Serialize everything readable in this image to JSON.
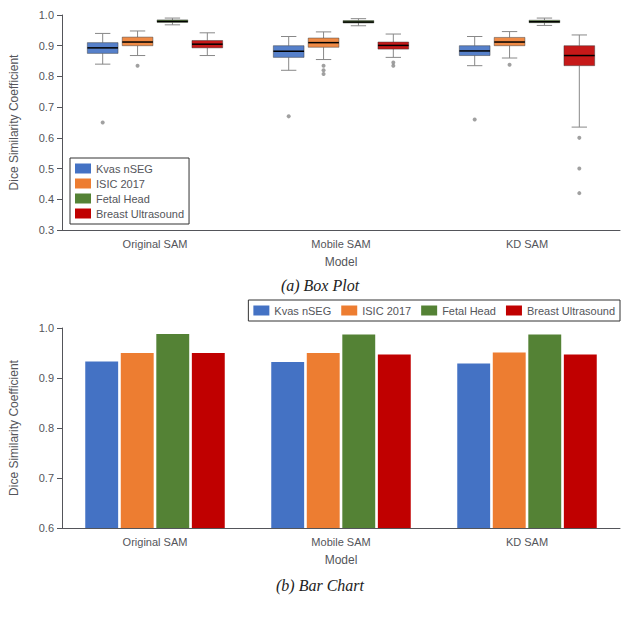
{
  "chart_data": [
    {
      "type": "boxplot",
      "title": "(a) Box Plot",
      "xlabel": "Model",
      "ylabel": "Dice Similarity Coefficient",
      "categories": [
        "Original SAM",
        "Mobile SAM",
        "KD SAM"
      ],
      "series": [
        {
          "name": "Kvas nSEG",
          "color": "#4472C4",
          "values": [
            [
              0.84,
              0.875,
              0.893,
              0.91,
              0.94
            ],
            [
              0.82,
              0.862,
              0.882,
              0.9,
              0.93
            ],
            [
              0.835,
              0.868,
              0.883,
              0.9,
              0.93
            ]
          ],
          "outliers": [
            [
              0.65
            ],
            [
              0.67
            ],
            [
              0.66
            ]
          ]
        },
        {
          "name": "ISIC 2017",
          "color": "#ED7D31",
          "values": [
            [
              0.868,
              0.9,
              0.912,
              0.928,
              0.948
            ],
            [
              0.855,
              0.895,
              0.91,
              0.925,
              0.945
            ],
            [
              0.86,
              0.9,
              0.912,
              0.927,
              0.946
            ]
          ],
          "outliers": [
            [
              0.835
            ],
            [
              0.835,
              0.82,
              0.808
            ],
            [
              0.838
            ]
          ]
        },
        {
          "name": "Fetal Head",
          "color": "#548235",
          "values": [
            [
              0.968,
              0.976,
              0.979,
              0.984,
              0.99
            ],
            [
              0.965,
              0.974,
              0.977,
              0.982,
              0.988
            ],
            [
              0.966,
              0.975,
              0.978,
              0.983,
              0.99
            ]
          ],
          "outliers": [
            [],
            [],
            []
          ]
        },
        {
          "name": "Breast Ultrasound",
          "color": "#C00000",
          "values": [
            [
              0.868,
              0.893,
              0.905,
              0.917,
              0.942
            ],
            [
              0.862,
              0.889,
              0.901,
              0.912,
              0.938
            ],
            [
              0.635,
              0.835,
              0.868,
              0.9,
              0.935
            ]
          ],
          "outliers": [
            [],
            [
              0.845,
              0.835
            ],
            [
              0.6,
              0.5,
              0.42
            ]
          ]
        }
      ],
      "ylim": [
        0.3,
        1.0
      ],
      "yticks": [
        0.3,
        0.4,
        0.5,
        0.6,
        0.7,
        0.8,
        0.9,
        {
          "value": 1.0,
          "label": "1.0"
        }
      ],
      "grid": false,
      "legend": "lower left"
    },
    {
      "type": "bar",
      "title": "(b) Bar Chart",
      "xlabel": "Model",
      "ylabel": "Dice Similarity Coefficient",
      "categories": [
        "Original SAM",
        "Mobile SAM",
        "KD SAM"
      ],
      "series": [
        {
          "name": "Kvas nSEG",
          "color": "#4472C4",
          "values": [
            0.933,
            0.932,
            0.929
          ]
        },
        {
          "name": "ISIC 2017",
          "color": "#ED7D31",
          "values": [
            0.95,
            0.95,
            0.951
          ]
        },
        {
          "name": "Fetal Head",
          "color": "#548235",
          "values": [
            0.988,
            0.987,
            0.987
          ]
        },
        {
          "name": "Breast Ultrasound",
          "color": "#C00000",
          "values": [
            0.95,
            0.947,
            0.947
          ]
        }
      ],
      "ylim": [
        0.6,
        1.0
      ],
      "yticks": [
        0.6,
        0.7,
        0.8,
        0.9,
        {
          "value": 1.0,
          "label": "1.0"
        }
      ],
      "grid": false,
      "legend": "upper right"
    }
  ]
}
